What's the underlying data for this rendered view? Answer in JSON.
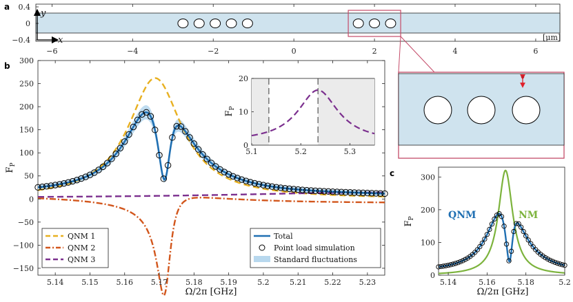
{
  "colors": {
    "total": "#1f6fb2",
    "qnm1": "#e8b020",
    "qnm2": "#d2561c",
    "qnm3": "#7b2f8e",
    "nm": "#7cb33c",
    "waveguide": "#cfe3ee",
    "band": "#b8d8ee",
    "zoombox": "#c44a68",
    "arrow": "#e0202a",
    "shade": "#ebebeb"
  },
  "panel_labels": {
    "a": "a",
    "b": "b",
    "c": "c"
  },
  "panel_a": {
    "y_axis_label": "y",
    "x_axis_label": "x",
    "unit": "[μm]",
    "x_ticks": [
      "-6",
      "-4",
      "-2",
      "0",
      "2",
      "4",
      "6"
    ],
    "y_ticks": [
      "0.4",
      "0",
      "-0.4"
    ],
    "x_range": [
      -6.4,
      6.6
    ],
    "y_range": [
      -0.4,
      0.4
    ],
    "waveguide_halfwidth": 0.25,
    "holes_x": [
      -2.75,
      -2.35,
      -1.95,
      -1.55,
      -1.15,
      1.6,
      2.0,
      2.4
    ],
    "hole_radius": 0.15,
    "zoom_box_x": [
      1.35,
      2.65
    ]
  },
  "chart_data": [
    {
      "id": "main",
      "type": "line",
      "xlabel": "Ω/2π [GHz]",
      "ylabel": "F_P",
      "xlim": [
        5.135,
        5.235
      ],
      "ylim": [
        -165,
        300
      ],
      "x_ticks": [
        "5.14",
        "5.15",
        "5.16",
        "5.17",
        "5.18",
        "5.19",
        "5.2",
        "5.21",
        "5.22",
        "5.23"
      ],
      "y_ticks": [
        "300",
        "250",
        "200",
        "150",
        "100",
        "50",
        "0",
        "-50",
        "-100",
        "-150"
      ],
      "legend_left": [
        "QNM 1",
        "QNM 2",
        "QNM 3"
      ],
      "legend_right": [
        "Total",
        "Point load simulation",
        "Standard fluctuations"
      ],
      "series": [
        {
          "name": "Total",
          "model": "total"
        },
        {
          "name": "QNM 1",
          "model": "qnm1"
        },
        {
          "name": "QNM 2",
          "model": "qnm2"
        },
        {
          "name": "QNM 3",
          "model": "qnm3"
        },
        {
          "name": "Point load simulation",
          "model": "points",
          "x_start": 5.135,
          "x_end": 5.235,
          "step": 0.00125
        }
      ],
      "models": {
        "qnm1": {
          "center": 5.1688,
          "halfwidth": 0.0095,
          "amplitude": 262
        },
        "qnm2": {
          "center": 5.1718,
          "halfwidth": 0.0024,
          "amplitude": -200,
          "dispersive": 0.72
        },
        "qnm3": {
          "baseline": 2,
          "amplitude": 14,
          "center": 5.23,
          "halfwidth": 0.05
        }
      }
    },
    {
      "id": "inset",
      "type": "line",
      "xlabel": "",
      "ylabel": "F_P",
      "xlim": [
        5.1,
        5.35
      ],
      "ylim": [
        0,
        20
      ],
      "x_ticks": [
        "5.1",
        "5.2",
        "5.3"
      ],
      "y_ticks": [
        "0",
        "10",
        "20"
      ],
      "series": [
        {
          "name": "QNM 3",
          "center": 5.235,
          "halfwidth": 0.05,
          "amplitude": 16.5
        }
      ],
      "dashed_verticals": [
        5.135,
        5.235
      ],
      "shaded_regions": [
        [
          5.1,
          5.135
        ],
        [
          5.235,
          5.35
        ]
      ]
    },
    {
      "id": "panel_c",
      "type": "line",
      "xlabel": "Ω/2π [GHz]",
      "ylabel": "F_P",
      "xlim": [
        5.135,
        5.2
      ],
      "ylim": [
        0,
        330
      ],
      "x_ticks": [
        "5.14",
        "5.16",
        "5.18",
        "5.2"
      ],
      "y_ticks": [
        "300",
        "200",
        "100",
        "0"
      ],
      "labels": [
        "QNM",
        "NM"
      ],
      "series": [
        {
          "name": "QNM",
          "model": "total"
        },
        {
          "name": "NM",
          "center": 5.1695,
          "halfwidth": 0.0045,
          "amplitude": 320
        },
        {
          "name": "Point load simulation",
          "x_start": 5.135,
          "x_end": 5.2,
          "step": 0.00125
        }
      ]
    }
  ]
}
